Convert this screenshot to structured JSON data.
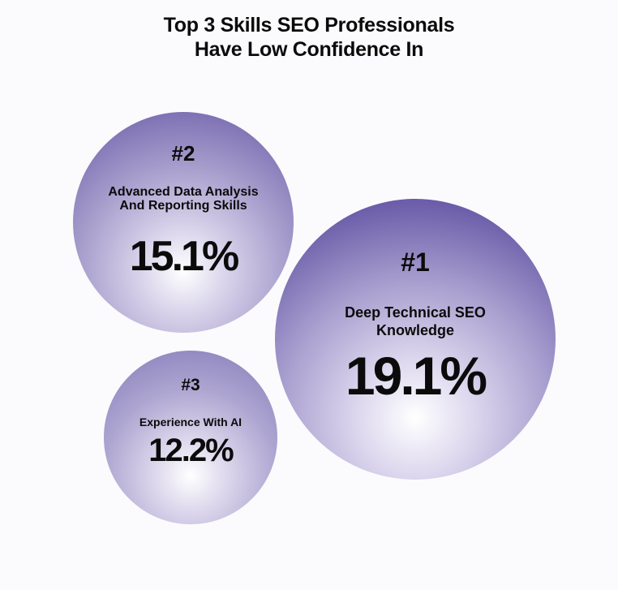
{
  "chart_data": {
    "type": "bubble",
    "title": "Top 3 Skills SEO Professionals Have Low Confidence In",
    "title_lines": [
      "Top 3 Skills SEO Professionals",
      "Have Low Confidence In"
    ],
    "unit": "%",
    "items": [
      {
        "rank": "#1",
        "label": "Deep Technical SEO Knowledge",
        "value": 19.1,
        "value_label": "19.1%"
      },
      {
        "rank": "#2",
        "label": "Advanced Data Analysis And Reporting Skills",
        "value": 15.1,
        "value_label": "15.1%"
      },
      {
        "rank": "#3",
        "label": "Experience With AI",
        "value": 12.2,
        "value_label": "12.2%"
      }
    ],
    "colors": {
      "bubble_edge": "#54469a",
      "bubble_center": "#ffffff",
      "text": "#0b0b0b",
      "background": "#fbfbfd"
    }
  }
}
